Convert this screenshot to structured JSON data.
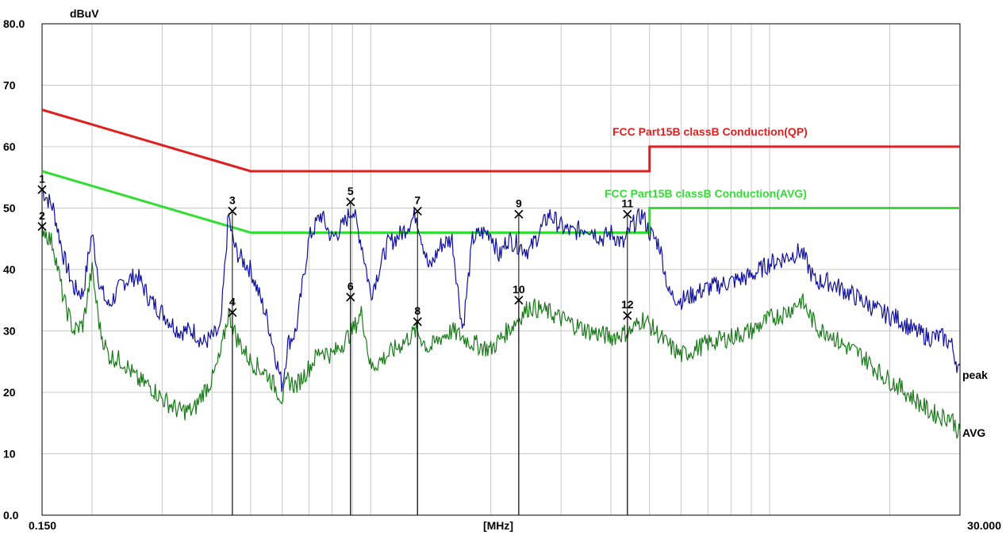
{
  "chart_data": {
    "type": "line",
    "ylabel": "dBuV",
    "xlabel": "[MHz]",
    "xscale": "log",
    "xlim": [
      0.15,
      30.0
    ],
    "ylim": [
      0,
      80
    ],
    "grid": true,
    "y_tick_labels": [
      "0.0",
      "10",
      "20",
      "30",
      "40",
      "50",
      "60",
      "70",
      "80.0"
    ],
    "x_tick_labels": [
      "0.150",
      "30.000"
    ],
    "limit_lines": [
      {
        "name": "FCC  Part15B classB Conduction(QP)",
        "color": "#e02020",
        "points": [
          [
            0.15,
            66
          ],
          [
            0.5,
            56
          ],
          [
            5.0,
            56
          ],
          [
            5.0,
            60
          ],
          [
            30.0,
            60
          ]
        ]
      },
      {
        "name": "FCC  Part15B classB Conduction(AVG)",
        "color": "#33dd33",
        "points": [
          [
            0.15,
            56
          ],
          [
            0.5,
            46
          ],
          [
            5.0,
            46
          ],
          [
            5.0,
            50
          ],
          [
            30.0,
            50
          ]
        ]
      }
    ],
    "series": [
      {
        "name": "peak",
        "color": "#1010a0",
        "x": [
          0.15,
          0.16,
          0.17,
          0.18,
          0.19,
          0.2,
          0.21,
          0.22,
          0.24,
          0.26,
          0.28,
          0.3,
          0.33,
          0.36,
          0.38,
          0.4,
          0.42,
          0.44,
          0.45,
          0.46,
          0.47,
          0.5,
          0.55,
          0.6,
          0.62,
          0.65,
          0.7,
          0.75,
          0.8,
          0.85,
          0.9,
          0.95,
          1.0,
          1.05,
          1.1,
          1.2,
          1.3,
          1.4,
          1.5,
          1.6,
          1.7,
          1.8,
          1.9,
          2.0,
          2.1,
          2.2,
          2.5,
          2.8,
          3.0,
          3.2,
          3.5,
          3.8,
          4.0,
          4.3,
          4.5,
          4.8,
          5.0,
          5.3,
          5.6,
          6.0,
          7.0,
          8.0,
          9.0,
          10.0,
          11.0,
          12.0,
          13.0,
          13.5,
          14.0,
          15.0,
          17.0,
          19.0,
          21.0,
          23.0,
          25.0,
          27.0,
          28.5,
          30.0
        ],
        "y": [
          53,
          50,
          42,
          37,
          36,
          46,
          37,
          34,
          38,
          39,
          35,
          33,
          30,
          30,
          28,
          29,
          30,
          49,
          45,
          43,
          42,
          40,
          32,
          21,
          28,
          30,
          45,
          49,
          45,
          47,
          50,
          44,
          36,
          40,
          44,
          46,
          49,
          40,
          44,
          45,
          30,
          45,
          46,
          46,
          42,
          45,
          43,
          49,
          47,
          46,
          47,
          45,
          46,
          44,
          47,
          49,
          46,
          44,
          36,
          35,
          37,
          38,
          39,
          41,
          42,
          43,
          38,
          38,
          38,
          37,
          35,
          33,
          32,
          30,
          29,
          29,
          28,
          23
        ]
      },
      {
        "name": "AVG",
        "color": "#1a7a1a",
        "x": [
          0.15,
          0.16,
          0.17,
          0.18,
          0.19,
          0.2,
          0.21,
          0.22,
          0.24,
          0.26,
          0.28,
          0.3,
          0.33,
          0.36,
          0.38,
          0.4,
          0.42,
          0.44,
          0.46,
          0.5,
          0.55,
          0.6,
          0.62,
          0.65,
          0.7,
          0.75,
          0.8,
          0.85,
          0.9,
          0.95,
          1.0,
          1.1,
          1.2,
          1.3,
          1.4,
          1.5,
          1.6,
          1.8,
          2.0,
          2.2,
          2.5,
          2.8,
          3.0,
          3.5,
          4.0,
          4.5,
          4.8,
          5.0,
          5.5,
          6.0,
          7.0,
          8.0,
          9.0,
          10.0,
          11.0,
          12.0,
          13.0,
          13.5,
          14.0,
          15.0,
          17.0,
          19.0,
          21.0,
          23.0,
          25.0,
          27.0,
          28.5,
          30.0
        ],
        "y": [
          47,
          44,
          35,
          30,
          31,
          40,
          30,
          26,
          25,
          22,
          21,
          19,
          17,
          17,
          20,
          22,
          26,
          33,
          29,
          25,
          23,
          19,
          22,
          21,
          24,
          27,
          26,
          28,
          30,
          33,
          24,
          26,
          28,
          30,
          27,
          29,
          30,
          28,
          27,
          30,
          34,
          33,
          32,
          30,
          29,
          30,
          32,
          31,
          28,
          26,
          28,
          29,
          30,
          32,
          33,
          35,
          31,
          30,
          30,
          28,
          26,
          23,
          21,
          19,
          17,
          16,
          16,
          13
        ]
      }
    ],
    "markers": [
      {
        "label": "1",
        "x": 0.15,
        "y": 53
      },
      {
        "label": "2",
        "x": 0.15,
        "y": 47
      },
      {
        "label": "3",
        "x": 0.45,
        "y": 49.5
      },
      {
        "label": "4",
        "x": 0.45,
        "y": 33
      },
      {
        "label": "5",
        "x": 0.89,
        "y": 51
      },
      {
        "label": "6",
        "x": 0.89,
        "y": 35.5
      },
      {
        "label": "7",
        "x": 1.31,
        "y": 49.5
      },
      {
        "label": "8",
        "x": 1.31,
        "y": 31.5
      },
      {
        "label": "9",
        "x": 2.35,
        "y": 49
      },
      {
        "label": "10",
        "x": 2.35,
        "y": 35
      },
      {
        "label": "11",
        "x": 4.4,
        "y": 49
      },
      {
        "label": "12",
        "x": 4.4,
        "y": 32.5
      }
    ]
  }
}
